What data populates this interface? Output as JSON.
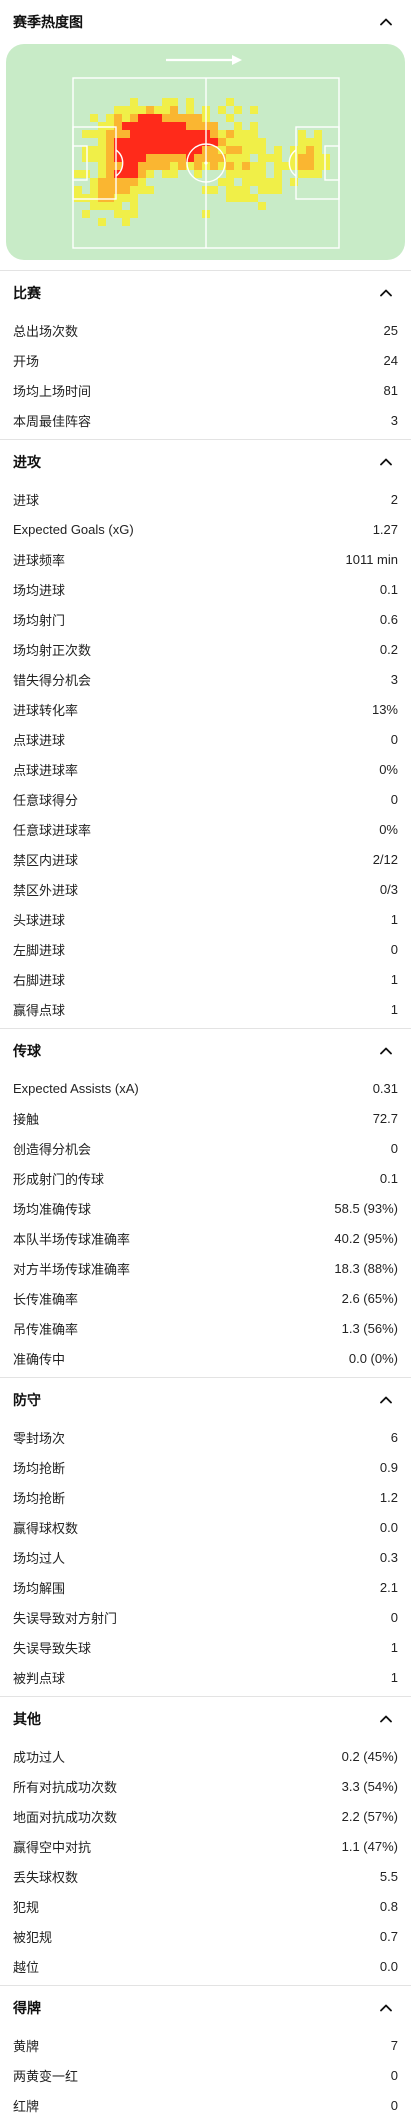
{
  "heatmap": {
    "title": "赛季热度图",
    "arrow": "arrow-right-icon"
  },
  "sections": [
    {
      "key": "matches",
      "title": "比赛",
      "rows": [
        {
          "label": "总出场次数",
          "value": "25"
        },
        {
          "label": "开场",
          "value": "24"
        },
        {
          "label": "场均上场时间",
          "value": "81"
        },
        {
          "label": "本周最佳阵容",
          "value": "3"
        }
      ]
    },
    {
      "key": "attack",
      "title": "进攻",
      "rows": [
        {
          "label": "进球",
          "value": "2"
        },
        {
          "label": "Expected Goals (xG)",
          "value": "1.27"
        },
        {
          "label": "进球频率",
          "value": "1011 min"
        },
        {
          "label": "场均进球",
          "value": "0.1"
        },
        {
          "label": "场均射门",
          "value": "0.6"
        },
        {
          "label": "场均射正次数",
          "value": "0.2"
        },
        {
          "label": "错失得分机会",
          "value": "3"
        },
        {
          "label": "进球转化率",
          "value": "13%"
        },
        {
          "label": "点球进球",
          "value": "0"
        },
        {
          "label": "点球进球率",
          "value": "0%"
        },
        {
          "label": "任意球得分",
          "value": "0"
        },
        {
          "label": "任意球进球率",
          "value": "0%"
        },
        {
          "label": "禁区内进球",
          "value": "2/12"
        },
        {
          "label": "禁区外进球",
          "value": "0/3"
        },
        {
          "label": "头球进球",
          "value": "1"
        },
        {
          "label": "左脚进球",
          "value": "0"
        },
        {
          "label": "右脚进球",
          "value": "1"
        },
        {
          "label": "赢得点球",
          "value": "1"
        }
      ]
    },
    {
      "key": "passing",
      "title": "传球",
      "rows": [
        {
          "label": "Expected Assists (xA)",
          "value": "0.31"
        },
        {
          "label": "接触",
          "value": "72.7"
        },
        {
          "label": "创造得分机会",
          "value": "0"
        },
        {
          "label": "形成射门的传球",
          "value": "0.1"
        },
        {
          "label": "场均准确传球",
          "value": "58.5 (93%)"
        },
        {
          "label": "本队半场传球准确率",
          "value": "40.2 (95%)"
        },
        {
          "label": "对方半场传球准确率",
          "value": "18.3 (88%)"
        },
        {
          "label": "长传准确率",
          "value": "2.6 (65%)"
        },
        {
          "label": "吊传准确率",
          "value": "1.3 (56%)"
        },
        {
          "label": "准确传中",
          "value": "0.0 (0%)"
        }
      ]
    },
    {
      "key": "defending",
      "title": "防守",
      "rows": [
        {
          "label": "零封场次",
          "value": "6"
        },
        {
          "label": "场均抢断",
          "value": "0.9"
        },
        {
          "label": "场均抢断",
          "value": "1.2"
        },
        {
          "label": "赢得球权数",
          "value": "0.0"
        },
        {
          "label": "场均过人",
          "value": "0.3"
        },
        {
          "label": "场均解围",
          "value": "2.1"
        },
        {
          "label": "失误导致对方射门",
          "value": "0"
        },
        {
          "label": "失误导致失球",
          "value": "1"
        },
        {
          "label": "被判点球",
          "value": "1"
        }
      ]
    },
    {
      "key": "other",
      "title": "其他",
      "rows": [
        {
          "label": "成功过人",
          "value": "0.2 (45%)"
        },
        {
          "label": "所有对抗成功次数",
          "value": "3.3 (54%)"
        },
        {
          "label": "地面对抗成功次数",
          "value": "2.2 (57%)"
        },
        {
          "label": "赢得空中对抗",
          "value": "1.1 (47%)"
        },
        {
          "label": "丢失球权数",
          "value": "5.5"
        },
        {
          "label": "犯规",
          "value": "0.8"
        },
        {
          "label": "被犯规",
          "value": "0.7"
        },
        {
          "label": "越位",
          "value": "0.0"
        }
      ]
    },
    {
      "key": "cards",
      "title": "得牌",
      "rows": [
        {
          "label": "黄牌",
          "value": "7"
        },
        {
          "label": "两黄变一红",
          "value": "0"
        },
        {
          "label": "红牌",
          "value": "0"
        }
      ]
    }
  ],
  "colors": {
    "pitch": "#c8ebc7",
    "heat_low": "#f4ef3a",
    "heat_mid": "#ffb020",
    "heat_high": "#ff2a1a"
  }
}
